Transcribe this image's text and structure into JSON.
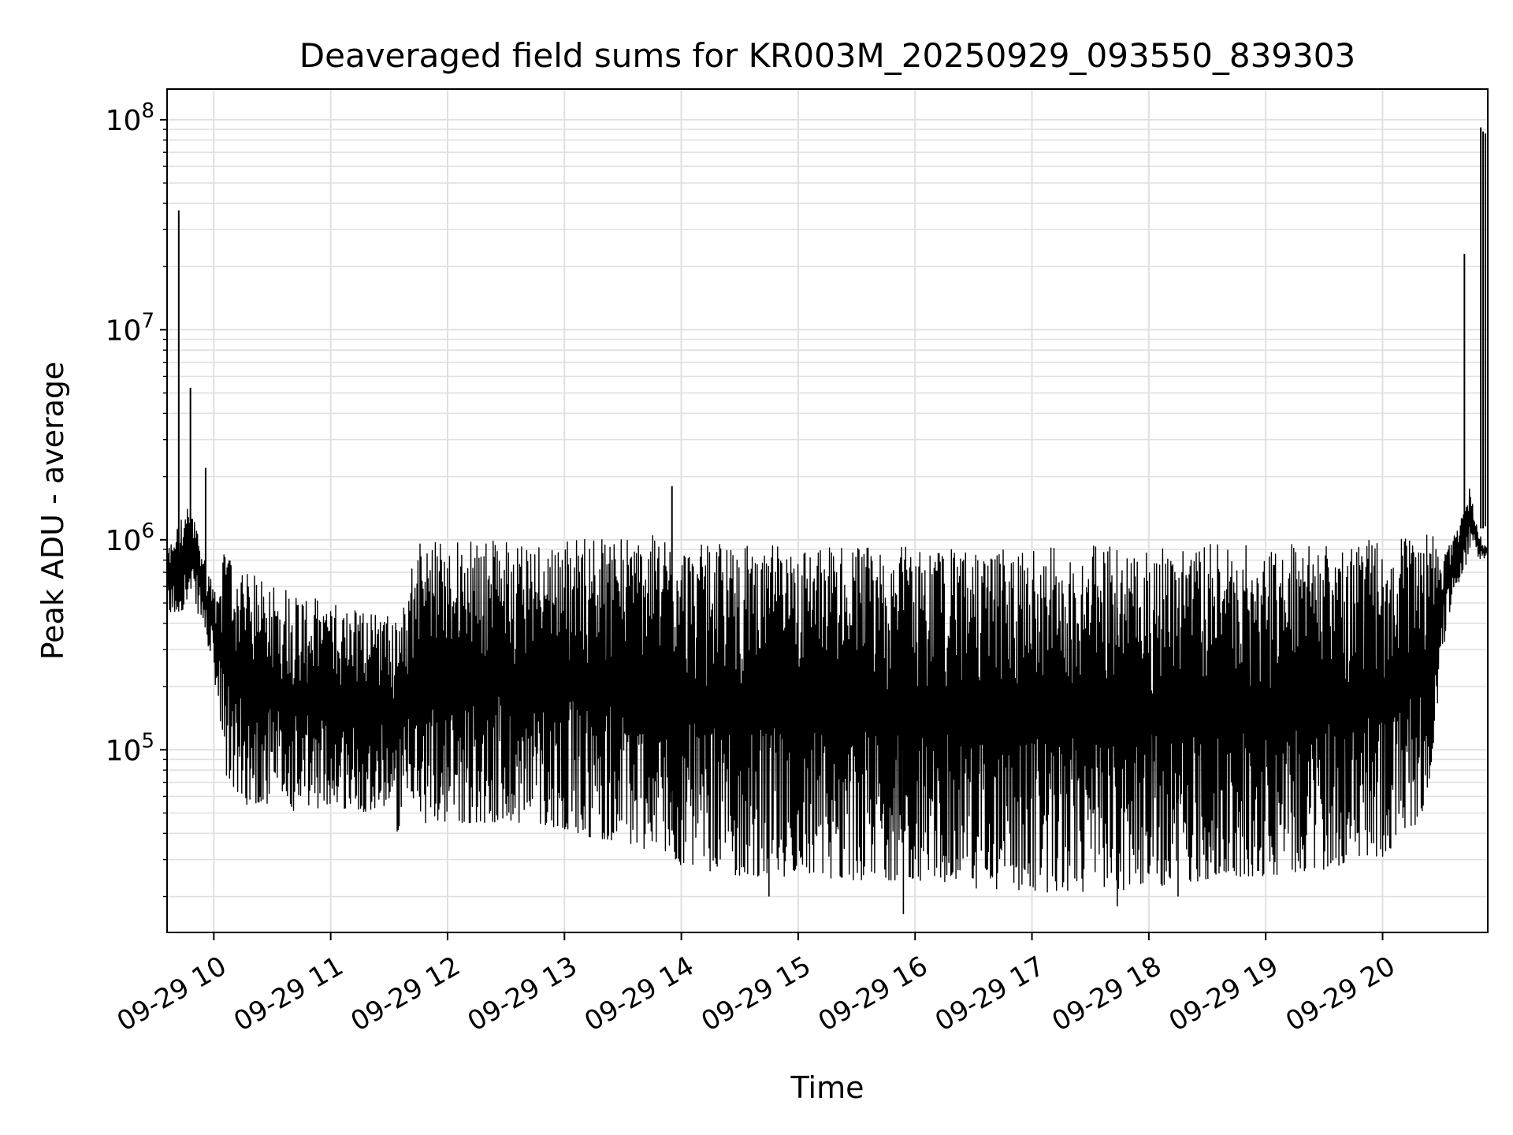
{
  "chart_data": {
    "type": "line",
    "title": "Deaveraged field sums for KR003M_20250929_093550_839303",
    "xlabel": "Time",
    "ylabel": "Peak ADU - average",
    "yscale": "log",
    "ylim": [
      13500,
      140000000
    ],
    "xlim_hours": [
      9.6,
      20.9
    ],
    "x_ticks": [
      {
        "hour": 10,
        "label": "09-29 10"
      },
      {
        "hour": 11,
        "label": "09-29 11"
      },
      {
        "hour": 12,
        "label": "09-29 12"
      },
      {
        "hour": 13,
        "label": "09-29 13"
      },
      {
        "hour": 14,
        "label": "09-29 14"
      },
      {
        "hour": 15,
        "label": "09-29 15"
      },
      {
        "hour": 16,
        "label": "09-29 16"
      },
      {
        "hour": 17,
        "label": "09-29 17"
      },
      {
        "hour": 18,
        "label": "09-29 18"
      },
      {
        "hour": 19,
        "label": "09-29 19"
      },
      {
        "hour": 20,
        "label": "09-29 20"
      }
    ],
    "y_ticks": [
      {
        "value": 100000,
        "base": "10",
        "exp": "5"
      },
      {
        "value": 1000000,
        "base": "10",
        "exp": "6"
      },
      {
        "value": 10000000,
        "base": "10",
        "exp": "7"
      },
      {
        "value": 100000000,
        "base": "10",
        "exp": "8"
      }
    ],
    "grid": true,
    "line_color": "#000000",
    "grid_color": "#e0e0e0",
    "series": [
      {
        "name": "Peak ADU - average",
        "hours": [
          9.6,
          9.7,
          9.8,
          9.9,
          10.0,
          10.1,
          10.25,
          10.5,
          10.75,
          11.0,
          11.25,
          11.5,
          11.55,
          11.75,
          12.0,
          12.25,
          12.5,
          12.75,
          13.0,
          13.25,
          13.5,
          13.75,
          14.0,
          14.5,
          15.0,
          15.5,
          16.0,
          16.5,
          17.0,
          17.5,
          18.0,
          18.5,
          19.0,
          19.5,
          20.0,
          20.25,
          20.4,
          20.5,
          20.6,
          20.7,
          20.75,
          20.8,
          20.85,
          20.9
        ],
        "lower": [
          430000,
          450000,
          500000,
          420000,
          230000,
          75000,
          55000,
          55000,
          50000,
          55000,
          50000,
          55000,
          40000,
          45000,
          45000,
          45000,
          45000,
          45000,
          42000,
          38000,
          36000,
          33000,
          28000,
          25000,
          25000,
          24000,
          24000,
          22000,
          21000,
          21000,
          22000,
          24000,
          25000,
          27000,
          30000,
          40000,
          60000,
          250000,
          560000,
          700000,
          900000,
          850000,
          800000,
          850000
        ],
        "upper": [
          900000,
          1200000,
          1500000,
          900000,
          600000,
          900000,
          700000,
          650000,
          550000,
          500000,
          480000,
          450000,
          400000,
          1000000,
          1000000,
          1000000,
          1000000,
          1000000,
          1000000,
          1050000,
          1050000,
          1050000,
          950000,
          950000,
          950000,
          950000,
          920000,
          900000,
          900000,
          950000,
          950000,
          950000,
          950000,
          980000,
          1000000,
          1100000,
          1100000,
          900000,
          1000000,
          1500000,
          1800000,
          1200000,
          1000000,
          900000
        ],
        "spikes": [
          {
            "hour": 9.7,
            "value": 37000000
          },
          {
            "hour": 9.8,
            "value": 5300000
          },
          {
            "hour": 9.93,
            "value": 2200000
          },
          {
            "hour": 13.92,
            "value": 1800000
          },
          {
            "hour": 20.7,
            "value": 23000000
          },
          {
            "hour": 20.84,
            "value": 92000000
          },
          {
            "hour": 20.86,
            "value": 88000000
          },
          {
            "hour": 20.88,
            "value": 86000000
          }
        ],
        "dips": [
          {
            "hour": 15.9,
            "value": 16500
          },
          {
            "hour": 17.73,
            "value": 18000
          },
          {
            "hour": 14.75,
            "value": 20000
          },
          {
            "hour": 18.25,
            "value": 20000
          }
        ]
      }
    ]
  }
}
